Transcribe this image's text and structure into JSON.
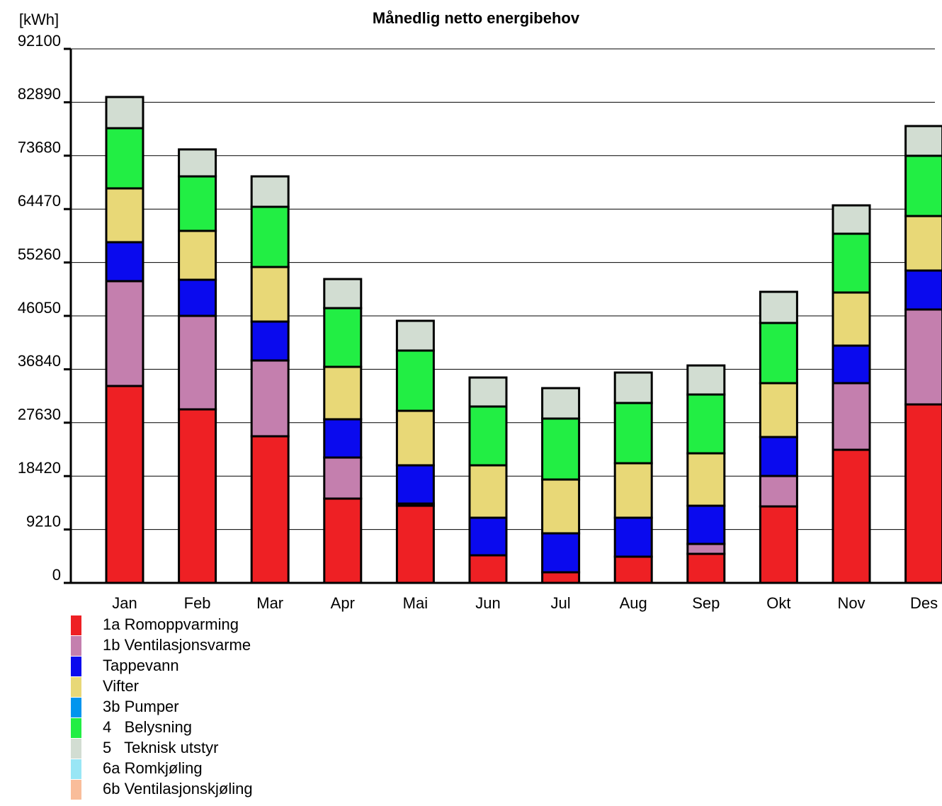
{
  "chart_data": {
    "type": "stacked-bar",
    "title": "Månedlig netto energibehov",
    "y_label": "[kWh]",
    "categories": [
      "Jan",
      "Feb",
      "Mar",
      "Apr",
      "Mai",
      "Jun",
      "Jul",
      "Aug",
      "Sep",
      "Okt",
      "Nov",
      "Des"
    ],
    "ylim": [
      0,
      92100
    ],
    "yticks": [
      0,
      9210,
      18420,
      27630,
      36840,
      46050,
      55260,
      64470,
      73680,
      82890,
      92100
    ],
    "grid": true,
    "series": [
      {
        "name": "1a Romoppvarming",
        "color": "#ee2024",
        "values": [
          33960,
          29930,
          25290,
          14540,
          13310,
          4760,
          1830,
          4520,
          5010,
          13190,
          22960,
          30780
        ]
      },
      {
        "name": "1b Ventilasjonsvarme",
        "color": "#c47fae",
        "values": [
          18080,
          16120,
          13070,
          7080,
          370,
          0,
          0,
          0,
          1710,
          5250,
          11490,
          16370
        ]
      },
      {
        "name": "Tappevann",
        "color": "#0a0aee",
        "values": [
          6720,
          6230,
          6710,
          6600,
          6600,
          6480,
          6720,
          6720,
          6590,
          6720,
          6470,
          6720
        ]
      },
      {
        "name": "Vifter",
        "color": "#e8d877",
        "values": [
          9280,
          8430,
          9410,
          9040,
          9400,
          9040,
          9280,
          9400,
          9040,
          9290,
          9160,
          9400
        ]
      },
      {
        "name": "3b Pumper",
        "color": "#0095ee",
        "values": [
          0,
          0,
          0,
          0,
          0,
          0,
          0,
          0,
          0,
          0,
          0,
          0
        ]
      },
      {
        "name": "4   Belysning",
        "color": "#22ee44",
        "values": [
          10380,
          9400,
          10380,
          10130,
          10390,
          10140,
          10510,
          10390,
          10140,
          10380,
          10140,
          10390
        ]
      },
      {
        "name": "5   Teknisk utstyr",
        "color": "#d2ddd2",
        "values": [
          5380,
          4650,
          5250,
          5010,
          5130,
          5000,
          5250,
          5250,
          5010,
          5370,
          4890,
          5130
        ]
      },
      {
        "name": "6a Romkjøling",
        "color": "#99e6f5",
        "values": [
          0,
          0,
          0,
          0,
          0,
          0,
          0,
          0,
          0,
          0,
          0,
          0
        ]
      },
      {
        "name": "6b Ventilasjonskjøling",
        "color": "#f9bd9a",
        "values": [
          0,
          0,
          0,
          0,
          0,
          0,
          0,
          0,
          0,
          0,
          0,
          0
        ]
      }
    ]
  }
}
